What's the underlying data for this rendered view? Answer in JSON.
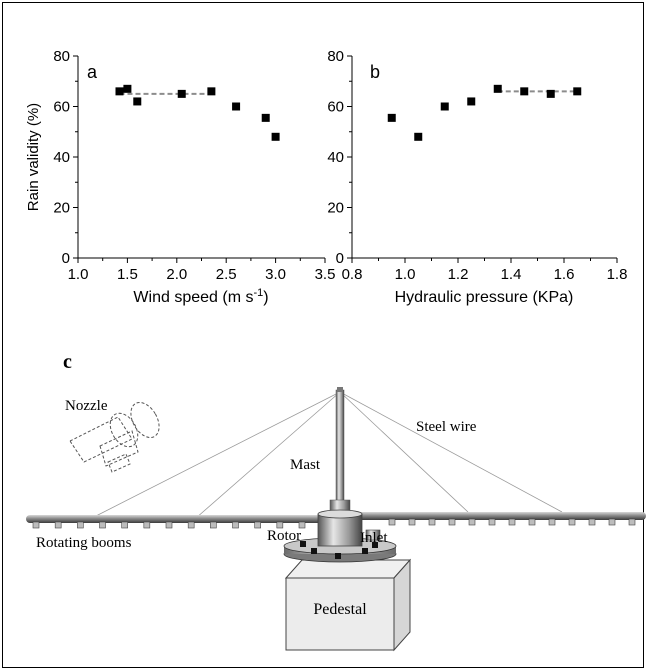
{
  "chart_data": [
    {
      "type": "scatter",
      "panel_label": "a",
      "xlabel": "Wind speed (m s",
      "xlabel_sup": "-1",
      "xlabel_end": ")",
      "ylabel": "Rain validity (%)",
      "xlim": [
        1.0,
        3.5
      ],
      "ylim": [
        0,
        80
      ],
      "xticks": [
        "1.0",
        "1.5",
        "2.0",
        "2.5",
        "3.0",
        "3.5"
      ],
      "yticks": [
        "0",
        "20",
        "40",
        "60",
        "80"
      ],
      "points": [
        {
          "x": 1.42,
          "y": 66
        },
        {
          "x": 1.5,
          "y": 67
        },
        {
          "x": 1.6,
          "y": 62
        },
        {
          "x": 2.05,
          "y": 65
        },
        {
          "x": 2.35,
          "y": 66
        },
        {
          "x": 2.6,
          "y": 60
        },
        {
          "x": 2.9,
          "y": 55.5
        },
        {
          "x": 3.0,
          "y": 48
        }
      ],
      "trend": {
        "x": [
          1.42,
          2.35
        ],
        "y": [
          65,
          65
        ],
        "style": "dashed",
        "color": "#8c8c8c"
      }
    },
    {
      "type": "scatter",
      "panel_label": "b",
      "xlabel": "Hydraulic pressure (KPa)",
      "ylabel": "",
      "xlim": [
        0.8,
        1.8
      ],
      "ylim": [
        0,
        80
      ],
      "xticks": [
        "0.8",
        "1.0",
        "1.2",
        "1.4",
        "1.6",
        "1.8"
      ],
      "yticks": [
        "0",
        "20",
        "40",
        "60",
        "80"
      ],
      "points": [
        {
          "x": 0.95,
          "y": 55.5
        },
        {
          "x": 1.05,
          "y": 48
        },
        {
          "x": 1.15,
          "y": 60
        },
        {
          "x": 1.25,
          "y": 62
        },
        {
          "x": 1.35,
          "y": 67
        },
        {
          "x": 1.45,
          "y": 66
        },
        {
          "x": 1.55,
          "y": 65
        },
        {
          "x": 1.65,
          "y": 66
        }
      ],
      "trend": {
        "x": [
          1.35,
          1.65
        ],
        "y": [
          66,
          66
        ],
        "style": "dashed",
        "color": "#8c8c8c"
      }
    }
  ],
  "diagram": {
    "panel_label": "c",
    "labels": {
      "nozzle": "Nozzle",
      "steel_wire": "Steel wire",
      "mast": "Mast",
      "rotating_booms": "Rotating booms",
      "rotor": "Rotor",
      "inlet": "Inlet",
      "pedestal": "Pedestal"
    },
    "nozzle_count_left": 13,
    "nozzle_count_right": 13
  }
}
